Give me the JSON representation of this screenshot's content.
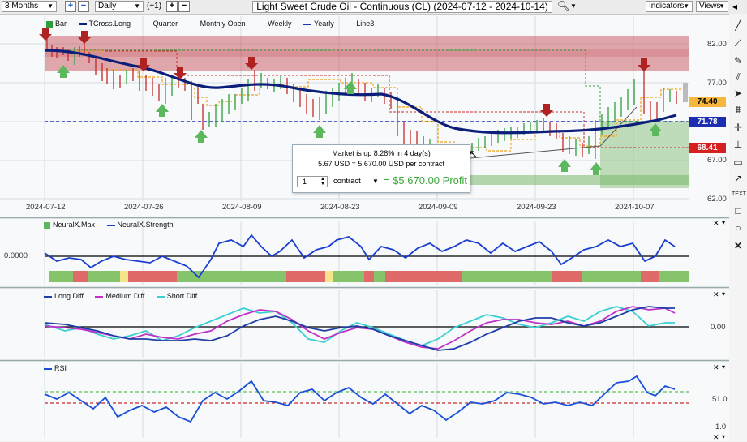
{
  "toolbar": {
    "range": "3 Months",
    "interval": "Daily",
    "offset": "(+1)",
    "title": "Light Sweet Crude Oil - Continuous (CL) (2024-07-12 - 2024-10-14)",
    "indicators_label": "Indicators",
    "views_label": "Views",
    "icons": [
      "plus-icon",
      "minus-icon",
      "zoom-in-icon",
      "zoom-out-icon",
      "magnifier-icon"
    ]
  },
  "price_pane": {
    "legend": [
      "Bar",
      "TCross.Long",
      "Quarter",
      "Monthly Open",
      "Weekly",
      "Yearly",
      "Line3"
    ],
    "y_labels": [
      "82.00",
      "77.00",
      "67.00",
      "62.00"
    ],
    "price_tags": [
      {
        "value": "74.40",
        "color": "#f6b73c"
      },
      {
        "value": "71.78",
        "color": "#1c2fb3"
      },
      {
        "value": "68.41",
        "color": "#d42020"
      }
    ],
    "x_labels": [
      "2024-07-12",
      "2024-07-26",
      "2024-08-09",
      "2024-08-23",
      "2024-09-09",
      "2024-09-23",
      "2024-10-07"
    ]
  },
  "tooltip": {
    "line1": "Market is up 8.28% in 4 day(s)",
    "line2": "5.67 USD = 5,670.00 USD per contract",
    "quantity": "1",
    "unit": "contract",
    "profit": "= $5,670.00 Profit"
  },
  "neuralx_pane": {
    "legend": [
      "NeuralX.Max",
      "NeuralX.Strength"
    ],
    "y_label": "0.0000"
  },
  "diff_pane": {
    "legend": [
      "Long.Diff",
      "Medium.Diff",
      "Short.Diff"
    ],
    "y_label": "0.00"
  },
  "rsi_pane": {
    "legend": [
      "RSI"
    ],
    "y_labels": [
      "51.0",
      "1.0"
    ]
  },
  "chart_data": {
    "type": "line",
    "title": "Light Sweet Crude Oil - Continuous (CL) (2024-07-12 - 2024-10-14)",
    "x": [
      "2024-07-12",
      "2024-07-26",
      "2024-08-09",
      "2024-08-23",
      "2024-09-09",
      "2024-09-23",
      "2024-10-07"
    ],
    "ylim": [
      62,
      84
    ],
    "series": [
      {
        "name": "Bar",
        "values": [
          82.2,
          78.2,
          77.2,
          76.0,
          68.7,
          68.4,
          76.1
        ]
      },
      {
        "name": "TCross.Long",
        "values": [
          81.8,
          79.4,
          76.3,
          75.7,
          70.6,
          69.9,
          71.5
        ]
      },
      {
        "name": "Quarter",
        "values": [
          81.3,
          81.3,
          81.3,
          81.3,
          81.3,
          81.3,
          69.2
        ]
      },
      {
        "name": "Monthly Open",
        "values": [
          81.5,
          81.5,
          77.7,
          77.6,
          73.6,
          73.6,
          67.9
        ]
      },
      {
        "name": "Weekly",
        "values": [
          82.2,
          77.0,
          75.4,
          77.2,
          69.1,
          69.5,
          73.3
        ]
      },
      {
        "name": "Yearly",
        "values": [
          71.78,
          71.78,
          71.78,
          71.78,
          71.78,
          71.78,
          71.78
        ]
      }
    ],
    "price_tags": [
      74.4,
      71.78,
      68.41
    ],
    "grid": true,
    "legend": "top-left"
  },
  "colors": {
    "background": "#f7f9fb",
    "tcross": "#0b1f7a",
    "quarter": "#2e9e3a",
    "monthly": "#cc2a2a",
    "weekly": "#f2a319",
    "yearly": "#2233bb",
    "up_arrow": "#5cb85c",
    "down_arrow": "#b02222",
    "neural_max_up": "#86c46b",
    "neural_max_down": "#e06a6a",
    "neural_max_neutral": "#f5e48a",
    "long_diff": "#1f3ea8",
    "medium_diff": "#c030c8",
    "short_diff": "#3ccfd0",
    "rsi": "#1a4fd8"
  }
}
